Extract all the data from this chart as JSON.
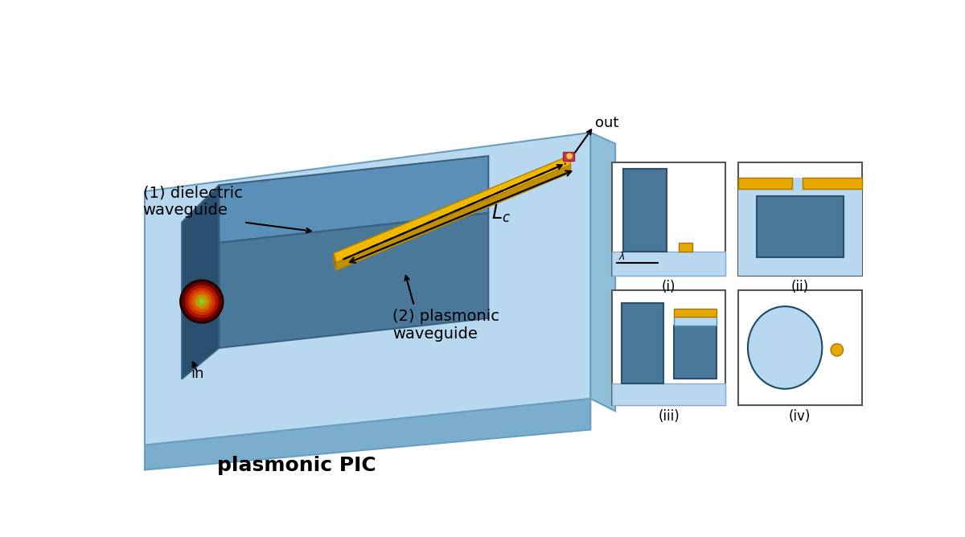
{
  "bg_color": "#ffffff",
  "light_blue_plat": "#a8cce0",
  "light_blue_plat2": "#b8d8ef",
  "side_blue": "#7aaecc",
  "front_blue": "#6a9ec0",
  "wg_top_color": "#5a8fb0",
  "wg_front_color": "#4a7898",
  "wg_left_color": "#3a6080",
  "gold_top": "#e8a800",
  "gold_side": "#c07800",
  "panel_light_blue": "#b8d8ef",
  "panel_dark_blue": "#4a7898",
  "panel_gold": "#e8a800",
  "panel_border": "#555555",
  "title": "plasmonic PIC",
  "label1": "(1) dielectric\nwaveguide",
  "label2": "(2) plasmonic\nwaveguide",
  "label_in": "in",
  "label_out": "out"
}
